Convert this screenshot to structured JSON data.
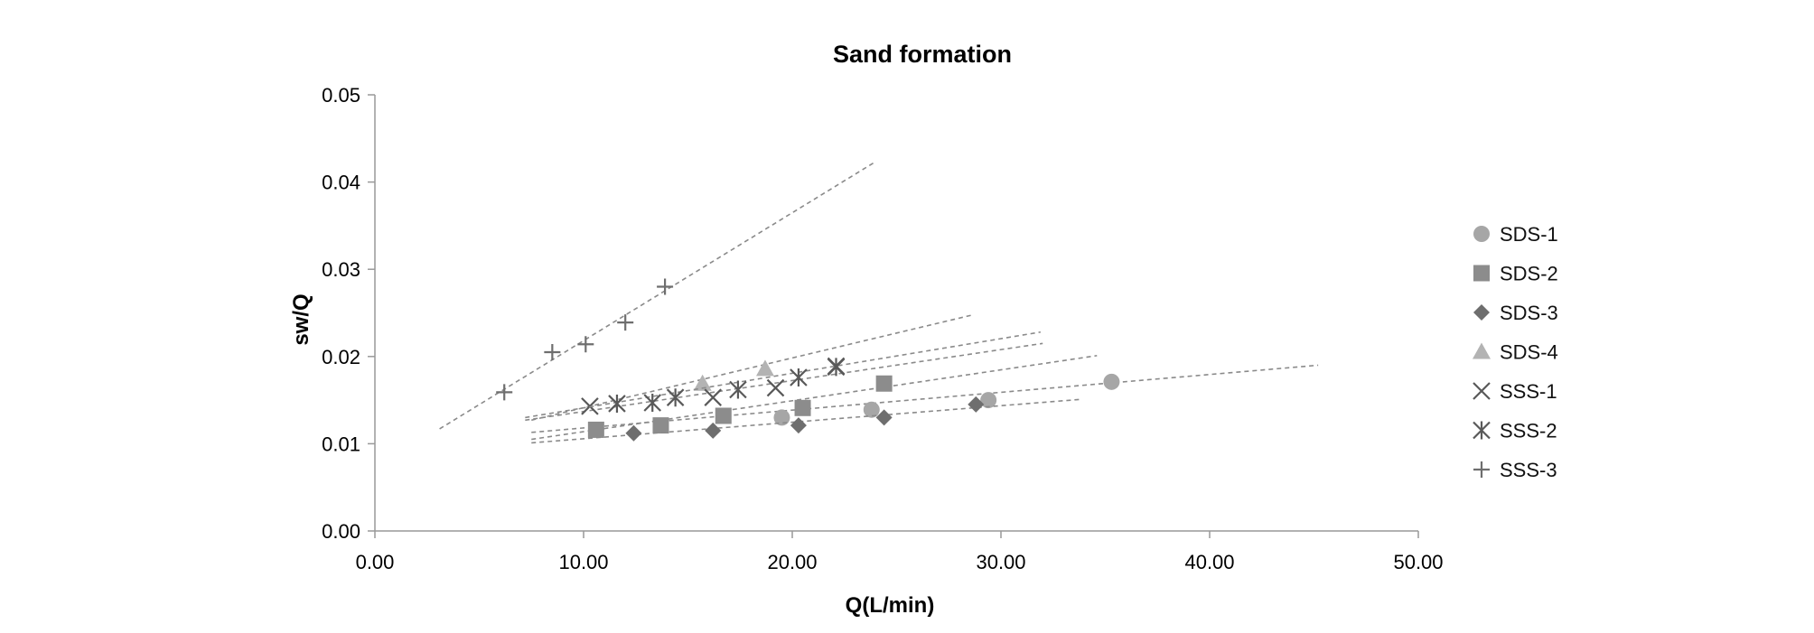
{
  "chart_data": {
    "type": "scatter",
    "title": "Sand formation",
    "xlabel": "Q(L/min)",
    "ylabel": "sw/Q",
    "xlim": [
      0,
      50
    ],
    "ylim": [
      0,
      0.05
    ],
    "x_ticks": [
      "0.00",
      "10.00",
      "20.00",
      "30.00",
      "40.00",
      "50.00"
    ],
    "y_ticks": [
      "0.00",
      "0.01",
      "0.02",
      "0.03",
      "0.04",
      "0.05"
    ],
    "grid": false,
    "legend_position": "right",
    "series": [
      {
        "name": "SDS-1",
        "marker": "circle",
        "color": "#a6a6a6",
        "points": [
          [
            19.5,
            0.013
          ],
          [
            23.8,
            0.0139
          ],
          [
            29.4,
            0.015
          ],
          [
            35.3,
            0.0171
          ]
        ],
        "trendline": [
          [
            7.5,
            0.0113
          ],
          [
            45.2,
            0.019
          ]
        ]
      },
      {
        "name": "SDS-2",
        "marker": "square",
        "color": "#8c8c8c",
        "points": [
          [
            10.6,
            0.0116
          ],
          [
            13.7,
            0.0121
          ],
          [
            16.7,
            0.0132
          ],
          [
            20.5,
            0.0141
          ],
          [
            24.4,
            0.0169
          ]
        ],
        "trendline": [
          [
            7.5,
            0.0105
          ],
          [
            34.6,
            0.0201
          ]
        ]
      },
      {
        "name": "SDS-3",
        "marker": "diamond",
        "color": "#6e6e6e",
        "points": [
          [
            12.4,
            0.0112
          ],
          [
            16.2,
            0.0115
          ],
          [
            20.3,
            0.0121
          ],
          [
            24.4,
            0.013
          ],
          [
            28.8,
            0.0145
          ]
        ],
        "trendline": [
          [
            7.5,
            0.0101
          ],
          [
            33.9,
            0.0151
          ]
        ]
      },
      {
        "name": "SDS-4",
        "marker": "triangle",
        "color": "#b3b3b3",
        "points": [
          [
            15.7,
            0.0169
          ],
          [
            18.7,
            0.0186
          ]
        ],
        "trendline": [
          [
            7.5,
            0.0127
          ],
          [
            28.7,
            0.0248
          ]
        ]
      },
      {
        "name": "SSS-1",
        "marker": "x",
        "color": "#595959",
        "points": [
          [
            10.3,
            0.0143
          ],
          [
            16.2,
            0.0153
          ],
          [
            19.2,
            0.0164
          ],
          [
            22.1,
            0.0189
          ]
        ],
        "trendline": [
          [
            7.2,
            0.0127
          ],
          [
            32.0,
            0.0215
          ]
        ]
      },
      {
        "name": "SSS-2",
        "marker": "asterisk",
        "color": "#595959",
        "points": [
          [
            11.6,
            0.0146
          ],
          [
            13.3,
            0.0147
          ],
          [
            14.4,
            0.0153
          ],
          [
            17.4,
            0.0162
          ],
          [
            20.3,
            0.0176
          ],
          [
            22.1,
            0.0188
          ]
        ],
        "trendline": [
          [
            7.2,
            0.013
          ],
          [
            31.9,
            0.0228
          ]
        ]
      },
      {
        "name": "SSS-3",
        "marker": "plus",
        "color": "#6e6e6e",
        "points": [
          [
            6.2,
            0.0159
          ],
          [
            8.5,
            0.0205
          ],
          [
            10.1,
            0.0214
          ],
          [
            12.0,
            0.0239
          ],
          [
            13.9,
            0.028
          ]
        ],
        "trendline": [
          [
            3.1,
            0.0117
          ],
          [
            23.9,
            0.0422
          ]
        ]
      }
    ]
  }
}
